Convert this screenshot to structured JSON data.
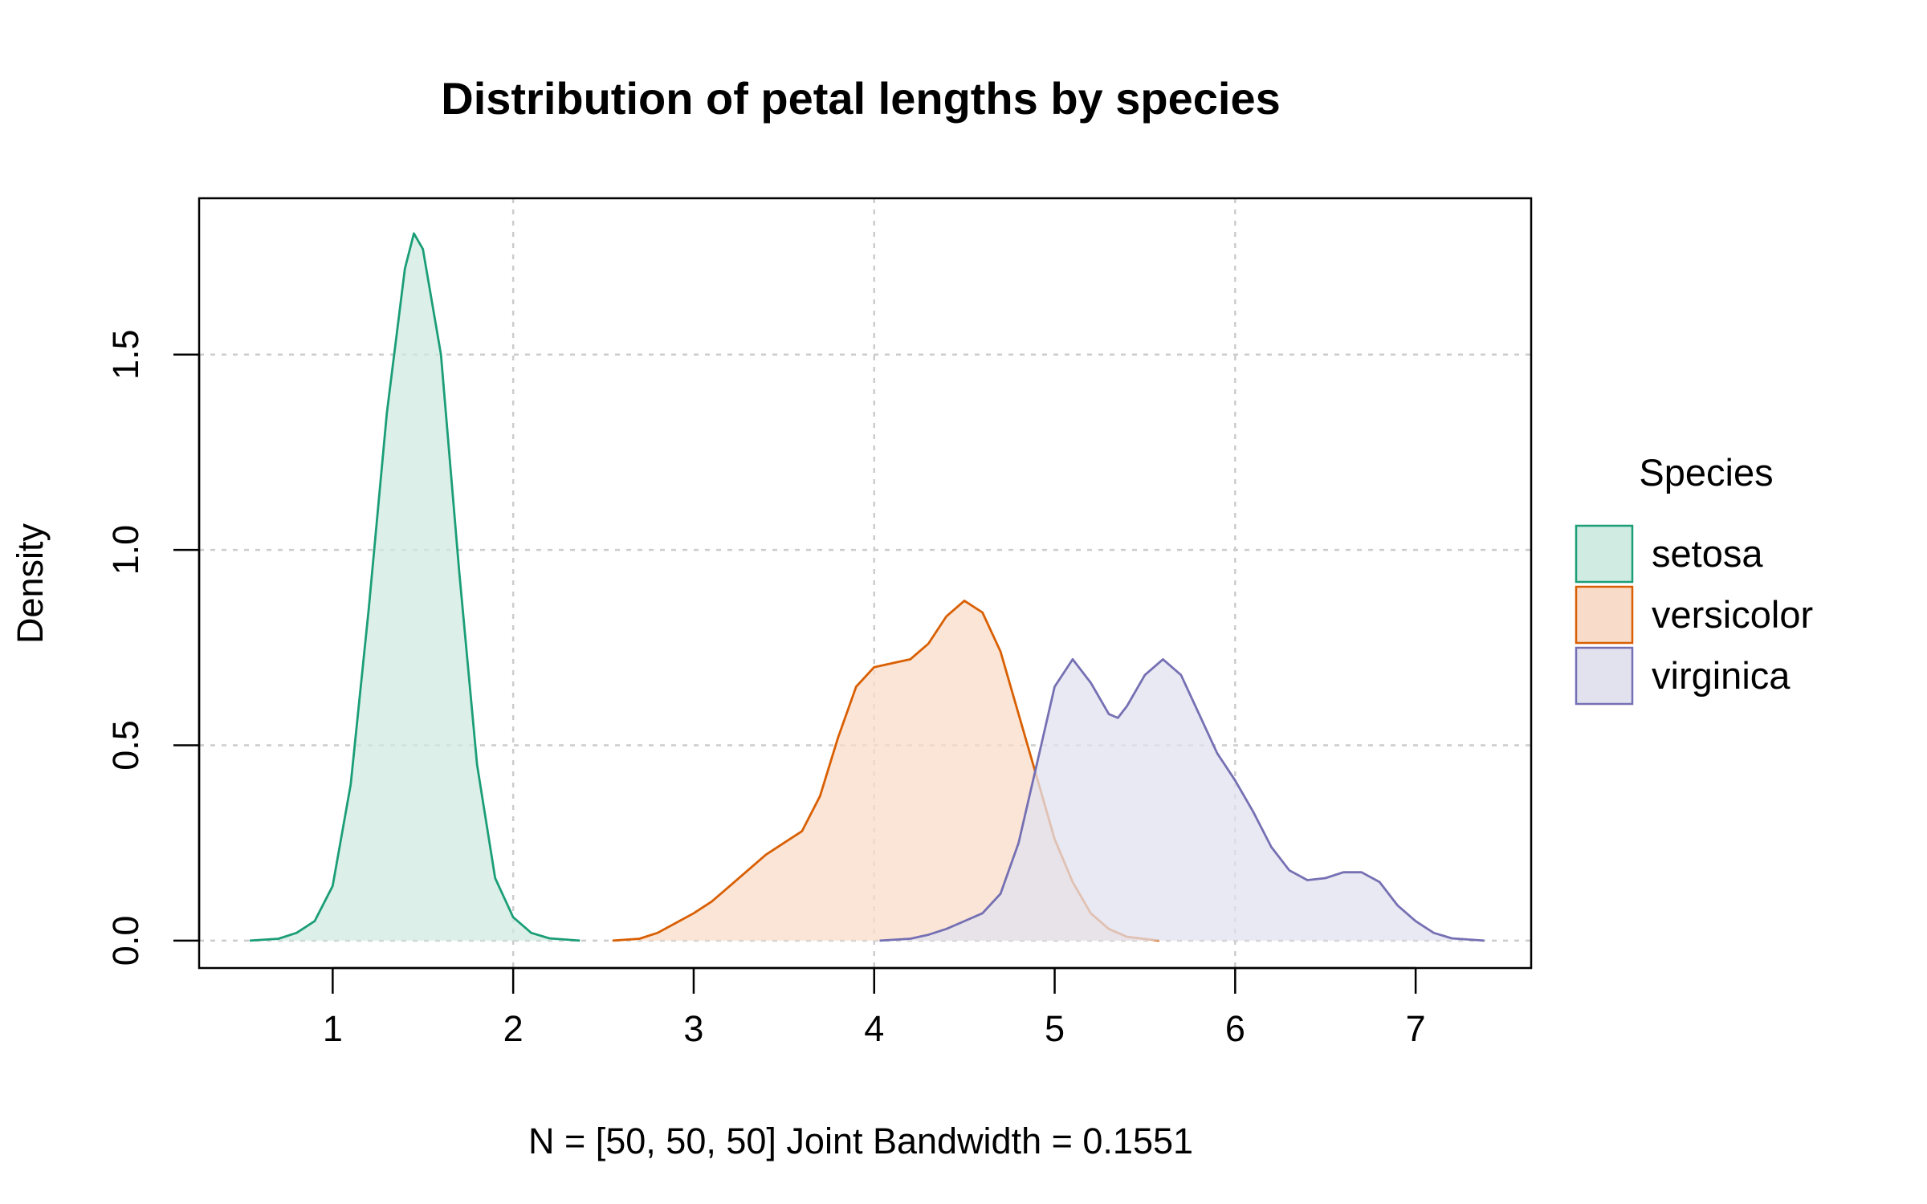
{
  "chart_data": {
    "type": "area",
    "title": "Distribution of petal lengths by species",
    "xlabel": "N = [50, 50, 50]   Joint Bandwidth = 0.1551",
    "ylabel": "Density",
    "xlim": [
      0.26,
      7.64
    ],
    "ylim": [
      -0.07,
      1.9
    ],
    "x_ticks": [
      1,
      2,
      3,
      4,
      5,
      6,
      7
    ],
    "y_ticks": [
      0.0,
      0.5,
      1.0,
      1.5
    ],
    "x_tick_labels": [
      "1",
      "2",
      "3",
      "4",
      "5",
      "6",
      "7"
    ],
    "y_tick_labels": [
      "0.0",
      "0.5",
      "1.0",
      "1.5"
    ],
    "grid": true,
    "legend": {
      "title": "Species",
      "position": "right"
    },
    "series": [
      {
        "name": "setosa",
        "color": "#1b9e77",
        "fill": "#d0ebe1",
        "points": [
          [
            0.54,
            0.0
          ],
          [
            0.7,
            0.005
          ],
          [
            0.8,
            0.02
          ],
          [
            0.9,
            0.05
          ],
          [
            1.0,
            0.14
          ],
          [
            1.1,
            0.4
          ],
          [
            1.2,
            0.85
          ],
          [
            1.3,
            1.35
          ],
          [
            1.4,
            1.72
          ],
          [
            1.45,
            1.81
          ],
          [
            1.5,
            1.77
          ],
          [
            1.6,
            1.5
          ],
          [
            1.7,
            0.95
          ],
          [
            1.8,
            0.45
          ],
          [
            1.9,
            0.16
          ],
          [
            2.0,
            0.06
          ],
          [
            2.1,
            0.02
          ],
          [
            2.2,
            0.006
          ],
          [
            2.37,
            0.0
          ]
        ]
      },
      {
        "name": "versicolor",
        "color": "#d95f02",
        "fill": "#f8dcc9",
        "points": [
          [
            2.55,
            0.0
          ],
          [
            2.7,
            0.005
          ],
          [
            2.8,
            0.02
          ],
          [
            2.9,
            0.045
          ],
          [
            3.0,
            0.07
          ],
          [
            3.1,
            0.1
          ],
          [
            3.2,
            0.14
          ],
          [
            3.3,
            0.18
          ],
          [
            3.4,
            0.22
          ],
          [
            3.5,
            0.25
          ],
          [
            3.6,
            0.28
          ],
          [
            3.7,
            0.37
          ],
          [
            3.8,
            0.52
          ],
          [
            3.9,
            0.65
          ],
          [
            4.0,
            0.7
          ],
          [
            4.1,
            0.71
          ],
          [
            4.2,
            0.72
          ],
          [
            4.3,
            0.76
          ],
          [
            4.4,
            0.83
          ],
          [
            4.5,
            0.87
          ],
          [
            4.6,
            0.84
          ],
          [
            4.7,
            0.74
          ],
          [
            4.8,
            0.58
          ],
          [
            4.9,
            0.42
          ],
          [
            5.0,
            0.26
          ],
          [
            5.1,
            0.15
          ],
          [
            5.2,
            0.07
          ],
          [
            5.3,
            0.03
          ],
          [
            5.4,
            0.01
          ],
          [
            5.58,
            0.0
          ]
        ]
      },
      {
        "name": "virginica",
        "color": "#7570b3",
        "fill": "#e2e2ef",
        "points": [
          [
            4.03,
            0.0
          ],
          [
            4.2,
            0.005
          ],
          [
            4.3,
            0.015
          ],
          [
            4.4,
            0.03
          ],
          [
            4.5,
            0.05
          ],
          [
            4.6,
            0.07
          ],
          [
            4.7,
            0.12
          ],
          [
            4.8,
            0.25
          ],
          [
            4.9,
            0.45
          ],
          [
            5.0,
            0.65
          ],
          [
            5.1,
            0.72
          ],
          [
            5.2,
            0.66
          ],
          [
            5.3,
            0.58
          ],
          [
            5.35,
            0.57
          ],
          [
            5.4,
            0.6
          ],
          [
            5.5,
            0.68
          ],
          [
            5.6,
            0.72
          ],
          [
            5.7,
            0.68
          ],
          [
            5.8,
            0.58
          ],
          [
            5.9,
            0.48
          ],
          [
            6.0,
            0.41
          ],
          [
            6.1,
            0.33
          ],
          [
            6.2,
            0.24
          ],
          [
            6.3,
            0.18
          ],
          [
            6.4,
            0.155
          ],
          [
            6.5,
            0.16
          ],
          [
            6.6,
            0.175
          ],
          [
            6.7,
            0.175
          ],
          [
            6.8,
            0.15
          ],
          [
            6.9,
            0.09
          ],
          [
            7.0,
            0.05
          ],
          [
            7.1,
            0.02
          ],
          [
            7.2,
            0.006
          ],
          [
            7.38,
            0.0
          ]
        ]
      }
    ]
  }
}
